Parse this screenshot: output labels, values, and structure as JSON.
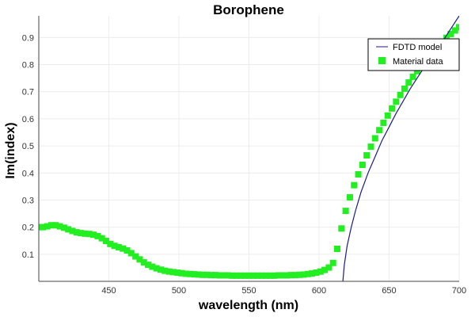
{
  "chart_data": {
    "type": "line",
    "title": "Borophene",
    "xlabel": "wavelength (nm)",
    "ylabel": "Im(index)",
    "xlim": [
      400,
      700
    ],
    "ylim": [
      0,
      0.98
    ],
    "x_ticks": [
      450,
      500,
      550,
      600,
      650,
      700
    ],
    "y_ticks": [
      0.1,
      0.2,
      0.3,
      0.4,
      0.5,
      0.6,
      0.7,
      0.8,
      0.9
    ],
    "grid": true,
    "legend_position": "top-right",
    "series": [
      {
        "name": "FDTD model",
        "style": "line",
        "color": "#1a1a8c",
        "x": [
          617,
          618,
          620,
          623,
          626,
          630,
          635,
          640,
          645,
          650,
          655,
          660,
          665,
          670,
          675,
          680,
          685,
          690,
          695,
          700
        ],
        "y": [
          0.0,
          0.06,
          0.13,
          0.2,
          0.26,
          0.33,
          0.4,
          0.46,
          0.52,
          0.57,
          0.62,
          0.665,
          0.71,
          0.75,
          0.79,
          0.83,
          0.865,
          0.9,
          0.94,
          0.98
        ]
      },
      {
        "name": "Material data",
        "style": "markers",
        "color": "#22ee22",
        "x": [
          400,
          403,
          406,
          409,
          412,
          415,
          418,
          421,
          424,
          427,
          430,
          433,
          436,
          439,
          442,
          445,
          448,
          451,
          454,
          457,
          460,
          463,
          466,
          469,
          472,
          475,
          478,
          481,
          484,
          487,
          490,
          493,
          496,
          499,
          502,
          505,
          508,
          511,
          514,
          517,
          520,
          523,
          526,
          529,
          532,
          535,
          538,
          541,
          544,
          547,
          550,
          553,
          556,
          559,
          562,
          565,
          568,
          571,
          574,
          577,
          580,
          583,
          586,
          589,
          592,
          595,
          598,
          601,
          604,
          607,
          610,
          613,
          616,
          619,
          622,
          625,
          628,
          631,
          634,
          637,
          640,
          643,
          646,
          649,
          652,
          655,
          658,
          661,
          664,
          667,
          670,
          673,
          676,
          679,
          682,
          685,
          688,
          691,
          694,
          697,
          700
        ],
        "y": [
          0.2,
          0.2,
          0.203,
          0.207,
          0.207,
          0.203,
          0.198,
          0.192,
          0.186,
          0.181,
          0.178,
          0.176,
          0.175,
          0.172,
          0.167,
          0.159,
          0.149,
          0.138,
          0.131,
          0.126,
          0.121,
          0.114,
          0.104,
          0.092,
          0.081,
          0.07,
          0.061,
          0.054,
          0.048,
          0.043,
          0.039,
          0.036,
          0.034,
          0.032,
          0.03,
          0.028,
          0.027,
          0.026,
          0.025,
          0.024,
          0.024,
          0.023,
          0.023,
          0.022,
          0.022,
          0.022,
          0.021,
          0.021,
          0.021,
          0.021,
          0.021,
          0.021,
          0.021,
          0.021,
          0.021,
          0.021,
          0.021,
          0.022,
          0.022,
          0.022,
          0.023,
          0.023,
          0.024,
          0.025,
          0.027,
          0.029,
          0.032,
          0.036,
          0.042,
          0.051,
          0.068,
          0.12,
          0.195,
          0.26,
          0.31,
          0.355,
          0.395,
          0.43,
          0.465,
          0.497,
          0.528,
          0.558,
          0.585,
          0.612,
          0.638,
          0.663,
          0.688,
          0.711,
          0.734,
          0.755,
          0.776,
          0.796,
          0.815,
          0.833,
          0.851,
          0.868,
          0.884,
          0.899,
          0.913,
          0.926,
          0.938
        ]
      }
    ]
  }
}
